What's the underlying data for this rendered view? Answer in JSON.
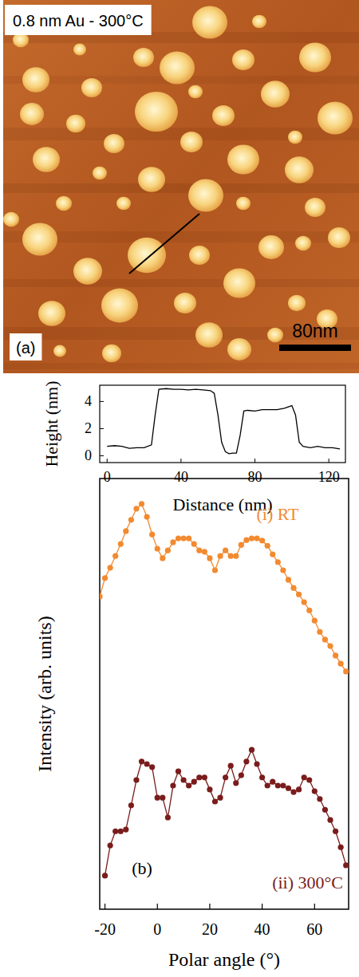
{
  "image": {
    "label": "0.8 nm Au - 300°C",
    "panel": "(a)",
    "scale_bar": "80nm"
  },
  "chart_data": [
    {
      "type": "line",
      "xlabel": "Distance (nm)",
      "ylabel": "Height (nm)",
      "x": [
        0,
        4,
        8,
        12,
        16,
        20,
        24,
        26,
        28,
        32,
        36,
        40,
        44,
        48,
        52,
        56,
        58,
        60,
        62,
        64,
        66,
        68,
        70,
        72,
        74,
        76,
        80,
        84,
        88,
        92,
        96,
        100,
        102,
        104,
        106,
        110,
        114,
        118,
        122,
        126
      ],
      "values": [
        0.7,
        0.75,
        0.7,
        0.55,
        0.6,
        0.6,
        0.8,
        3.0,
        4.9,
        4.95,
        4.9,
        4.9,
        4.85,
        4.9,
        4.85,
        4.8,
        4.6,
        3.0,
        1.0,
        0.3,
        0.15,
        0.2,
        0.2,
        1.5,
        3.3,
        3.35,
        3.3,
        3.4,
        3.4,
        3.4,
        3.5,
        3.7,
        3.0,
        1.0,
        0.7,
        0.6,
        0.7,
        0.6,
        0.6,
        0.5
      ],
      "color": "#000000",
      "xlim": [
        -4,
        129
      ],
      "ylim": [
        -0.5,
        5.2
      ],
      "xticks": [
        0,
        40,
        80,
        120
      ],
      "yticks": [
        0,
        2,
        4
      ]
    },
    {
      "type": "line",
      "panel": "(b)",
      "xlabel": "Polar angle (°)",
      "ylabel": "Intensity (arb. units)",
      "x": [
        -22,
        -20,
        -18,
        -16,
        -14,
        -12,
        -10,
        -8,
        -6,
        -4,
        -2,
        0,
        2,
        4,
        6,
        8,
        10,
        12,
        14,
        16,
        18,
        20,
        22,
        24,
        26,
        28,
        30,
        32,
        34,
        36,
        38,
        40,
        42,
        44,
        46,
        48,
        50,
        52,
        54,
        56,
        58,
        60,
        62,
        64,
        66,
        68,
        70,
        72
      ],
      "series": [
        {
          "name": "(i) RT",
          "color": "#f28a30",
          "values": [
            72.6,
            76.9,
            79.3,
            82.0,
            84.8,
            87.8,
            90.4,
            93.0,
            94.1,
            91.1,
            87.0,
            83.7,
            81.5,
            83.3,
            85.2,
            86.1,
            86.1,
            86.1,
            84.8,
            83.3,
            83.0,
            81.5,
            78.7,
            82.0,
            83.3,
            82.0,
            82.0,
            84.6,
            85.7,
            86.1,
            86.1,
            85.6,
            84.4,
            82.4,
            80.6,
            78.7,
            76.5,
            74.6,
            73.1,
            71.3,
            69.4,
            67.0,
            64.4,
            62.6,
            61.1,
            58.9,
            57.0,
            55.2
          ]
        },
        {
          "name": "(ii) 300°C",
          "color": "#7a1c1c",
          "values": [
            null,
            7.8,
            14.8,
            18.1,
            18.1,
            18.5,
            24.1,
            30.0,
            34.3,
            33.7,
            33.0,
            25.9,
            25.9,
            21.3,
            28.7,
            32.0,
            30.0,
            28.7,
            29.6,
            30.6,
            30.6,
            27.8,
            25.0,
            25.9,
            30.6,
            33.3,
            29.3,
            31.1,
            34.3,
            37.0,
            33.7,
            30.6,
            28.7,
            29.6,
            28.7,
            28.7,
            28.1,
            27.2,
            27.8,
            30.6,
            30.0,
            27.4,
            25.6,
            23.1,
            20.7,
            18.1,
            14.4,
            10.2
          ]
        }
      ],
      "marker": "circle",
      "xlim": [
        -22,
        73
      ],
      "ylim": [
        0,
        100
      ],
      "xticks": [
        -20,
        0,
        20,
        40,
        60
      ],
      "tick_labels": "x"
    }
  ]
}
